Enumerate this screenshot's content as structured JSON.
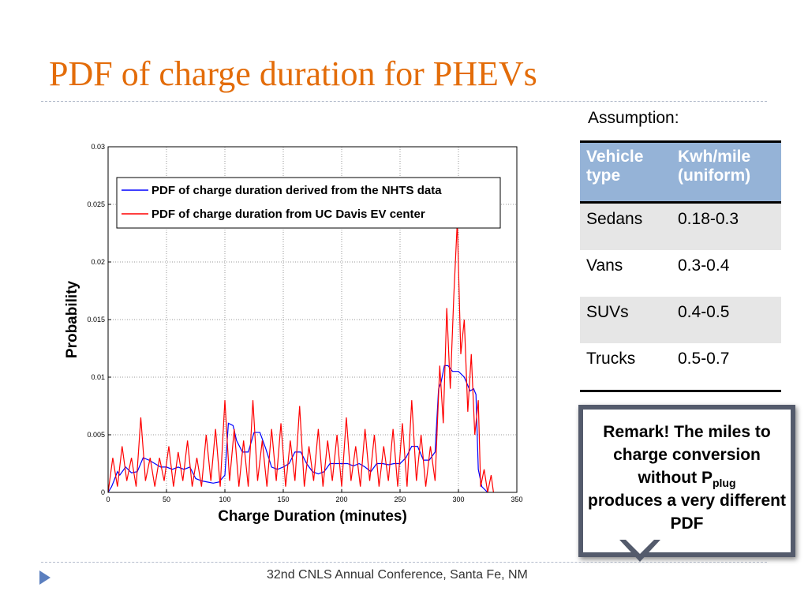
{
  "slide_title": "PDF of charge duration for PHEVs",
  "assumption": "Assumption:",
  "table": {
    "header": [
      "Vehicle type",
      "Kwh/mile (uniform)"
    ],
    "rows": [
      [
        "Sedans",
        "0.18-0.3"
      ],
      [
        "Vans",
        "0.3-0.4"
      ],
      [
        "SUVs",
        "0.4-0.5"
      ],
      [
        "Trucks",
        "0.5-0.7"
      ]
    ]
  },
  "remark": {
    "before": "Remark!  The miles to charge conversion without P",
    "sub": "plug",
    "after": "produces a very different PDF"
  },
  "footer": "32nd CNLS Annual Conference, Santa Fe, NM",
  "chart_data": {
    "type": "line",
    "xlabel": "Charge Duration (minutes)",
    "ylabel": "Probability",
    "xlim": [
      0,
      350
    ],
    "xticks": [
      0,
      50,
      100,
      150,
      200,
      250,
      300,
      350
    ],
    "ylim": [
      0,
      0.03
    ],
    "yticks": [
      0,
      0.005,
      0.01,
      0.015,
      0.02,
      0.025,
      0.03
    ],
    "grid": true,
    "legend": "upper left",
    "series": [
      {
        "name": "PDF of charge duration derived from the NHTS data",
        "color": "#0000ff",
        "x": [
          0,
          3,
          5,
          8,
          10,
          15,
          20,
          25,
          30,
          35,
          40,
          45,
          50,
          55,
          60,
          65,
          70,
          75,
          80,
          85,
          90,
          95,
          100,
          103,
          107,
          110,
          115,
          120,
          125,
          130,
          135,
          140,
          145,
          150,
          155,
          160,
          165,
          170,
          175,
          180,
          185,
          190,
          195,
          200,
          205,
          210,
          215,
          220,
          225,
          230,
          235,
          240,
          245,
          250,
          255,
          260,
          265,
          270,
          275,
          280,
          283,
          285,
          288,
          291,
          295,
          300,
          305,
          310,
          313,
          315,
          317,
          320,
          325
        ],
        "values": [
          0,
          0.0005,
          0.001,
          0.0018,
          0.0015,
          0.0022,
          0.0017,
          0.0018,
          0.003,
          0.0028,
          0.0025,
          0.0022,
          0.0022,
          0.002,
          0.0022,
          0.002,
          0.0022,
          0.0012,
          0.001,
          0.0009,
          0.0008,
          0.0009,
          0.0015,
          0.006,
          0.0058,
          0.0045,
          0.0035,
          0.0035,
          0.0052,
          0.0052,
          0.0038,
          0.0022,
          0.002,
          0.0022,
          0.0025,
          0.0035,
          0.0035,
          0.0025,
          0.0018,
          0.0016,
          0.0018,
          0.0025,
          0.0025,
          0.0025,
          0.0025,
          0.0023,
          0.0025,
          0.0022,
          0.0018,
          0.0025,
          0.0025,
          0.0024,
          0.0025,
          0.0025,
          0.003,
          0.004,
          0.004,
          0.0028,
          0.0028,
          0.0035,
          0.009,
          0.0095,
          0.011,
          0.011,
          0.0105,
          0.0105,
          0.01,
          0.0088,
          0.009,
          0.0085,
          0.002,
          0.0005,
          0
        ]
      },
      {
        "name": "PDF of charge duration from UC Davis EV center",
        "color": "#ff0000",
        "x": [
          0,
          4,
          8,
          12,
          16,
          20,
          24,
          28,
          32,
          36,
          40,
          44,
          48,
          52,
          56,
          60,
          64,
          68,
          72,
          76,
          80,
          84,
          88,
          92,
          96,
          100,
          104,
          108,
          112,
          116,
          120,
          124,
          128,
          132,
          136,
          140,
          144,
          148,
          152,
          156,
          160,
          164,
          168,
          172,
          176,
          180,
          184,
          188,
          192,
          196,
          200,
          204,
          208,
          212,
          216,
          220,
          224,
          228,
          232,
          236,
          240,
          244,
          248,
          252,
          256,
          260,
          264,
          268,
          272,
          276,
          280,
          284,
          287,
          290,
          293,
          296,
          299,
          302,
          305,
          308,
          311,
          314,
          317,
          319,
          322,
          325,
          328,
          330
        ],
        "values": [
          0,
          0.003,
          0.0005,
          0.004,
          0.001,
          0.003,
          0.0005,
          0.0065,
          0.001,
          0.003,
          0.0005,
          0.003,
          0.001,
          0.004,
          0.0005,
          0.0035,
          0.001,
          0.0045,
          0.0005,
          0.003,
          0.0005,
          0.005,
          0.001,
          0.0055,
          0.0005,
          0.008,
          0.001,
          0.0055,
          0.0005,
          0.0045,
          0.0005,
          0.008,
          0.001,
          0.0045,
          0.0005,
          0.0055,
          0.001,
          0.006,
          0.0005,
          0.0045,
          0.001,
          0.0075,
          0.0005,
          0.004,
          0.001,
          0.0055,
          0.0005,
          0.0045,
          0.001,
          0.005,
          0.0005,
          0.0065,
          0.001,
          0.004,
          0.0005,
          0.0055,
          0.001,
          0.005,
          0.0005,
          0.004,
          0.001,
          0.0055,
          0.0005,
          0.006,
          0.0005,
          0.008,
          0.001,
          0.005,
          0.0005,
          0.004,
          0.001,
          0.011,
          0.006,
          0.016,
          0.009,
          0.017,
          0.0235,
          0.012,
          0.015,
          0.007,
          0.012,
          0.005,
          0.008,
          0.0005,
          0.002,
          0,
          0.0015,
          0
        ]
      }
    ]
  }
}
